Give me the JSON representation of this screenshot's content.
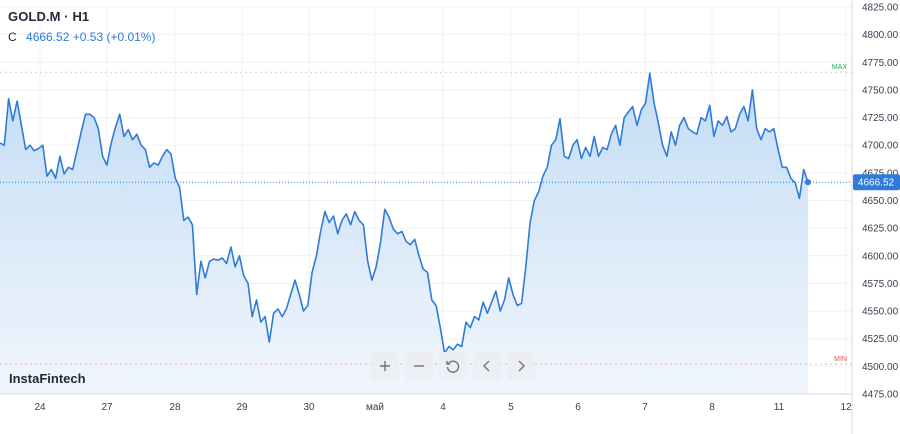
{
  "header": {
    "symbol": "GOLD.M · H1",
    "close_label": "C",
    "close_value": "4666.52",
    "change": "+0.53 (+0.01%)"
  },
  "brand": "InstaFintech",
  "toolbar": [
    {
      "name": "zoom-in-button",
      "icon": "plus-icon"
    },
    {
      "name": "zoom-out-button",
      "icon": "minus-icon"
    },
    {
      "name": "reset-button",
      "icon": "reset-icon"
    },
    {
      "name": "scroll-left-button",
      "icon": "chevron-left-icon"
    },
    {
      "name": "scroll-right-button",
      "icon": "chevron-right-icon"
    }
  ],
  "colors": {
    "line": "#2f7bd9",
    "fill_top": "#c3dcf5",
    "fill_bottom": "#f1f6fc",
    "max": "#2e9e5b",
    "min": "#d9534f",
    "grid": "#eef1f5"
  },
  "chart_data": {
    "type": "area",
    "title": "GOLD.M · H1",
    "grid": true,
    "ylim": [
      4475,
      4825
    ],
    "y_ticks": [
      "4825.00",
      "4800.00",
      "4775.00",
      "4750.00",
      "4725.00",
      "4700.00",
      "4675.00",
      "4650.00",
      "4625.00",
      "4600.00",
      "4575.00",
      "4550.00",
      "4525.00",
      "4500.00",
      "4475.00"
    ],
    "x_ticks": [
      "24",
      "27",
      "28",
      "29",
      "30",
      "май",
      "4",
      "5",
      "6",
      "7",
      "8",
      "11",
      "12"
    ],
    "last_price": {
      "value": 4666.52,
      "label": "4666.52"
    },
    "max_line": {
      "value": 4766,
      "label": "MAX"
    },
    "min_line": {
      "value": 4502,
      "label": "MIN"
    },
    "series": [
      {
        "values": [
          4702,
          4700,
          4742,
          4722,
          4740,
          4718,
          4696,
          4700,
          4695,
          4697,
          4700,
          4672,
          4678,
          4670,
          4690,
          4674,
          4680,
          4678,
          4695,
          4712,
          4728,
          4728,
          4725,
          4715,
          4690,
          4682,
          4702,
          4716,
          4728,
          4708,
          4714,
          4705,
          4710,
          4700,
          4696,
          4680,
          4684,
          4682,
          4690,
          4696,
          4692,
          4670,
          4662,
          4632,
          4635,
          4628,
          4565,
          4595,
          4580,
          4595,
          4597,
          4596,
          4598,
          4593,
          4608,
          4590,
          4600,
          4582,
          4575,
          4545,
          4560,
          4540,
          4545,
          4522,
          4548,
          4552,
          4545,
          4552,
          4565,
          4578,
          4565,
          4550,
          4555,
          4585,
          4600,
          4622,
          4640,
          4630,
          4636,
          4620,
          4632,
          4638,
          4628,
          4640,
          4632,
          4628,
          4595,
          4578,
          4590,
          4612,
          4642,
          4635,
          4624,
          4620,
          4622,
          4613,
          4610,
          4615,
          4600,
          4588,
          4585,
          4560,
          4555,
          4535,
          4512,
          4518,
          4515,
          4520,
          4518,
          4540,
          4535,
          4545,
          4542,
          4558,
          4548,
          4558,
          4568,
          4550,
          4560,
          4580,
          4565,
          4555,
          4557,
          4590,
          4630,
          4650,
          4658,
          4672,
          4680,
          4700,
          4705,
          4724,
          4690,
          4688,
          4700,
          4705,
          4688,
          4698,
          4690,
          4708,
          4690,
          4698,
          4696,
          4710,
          4718,
          4700,
          4725,
          4730,
          4735,
          4718,
          4732,
          4738,
          4765,
          4738,
          4720,
          4700,
          4690,
          4712,
          4700,
          4718,
          4725,
          4715,
          4712,
          4710,
          4725,
          4722,
          4736,
          4708,
          4722,
          4718,
          4726,
          4712,
          4715,
          4728,
          4735,
          4722,
          4750,
          4715,
          4705,
          4715,
          4712,
          4715,
          4696,
          4680,
          4680,
          4670,
          4666,
          4652,
          4678,
          4666.52
        ]
      }
    ]
  }
}
